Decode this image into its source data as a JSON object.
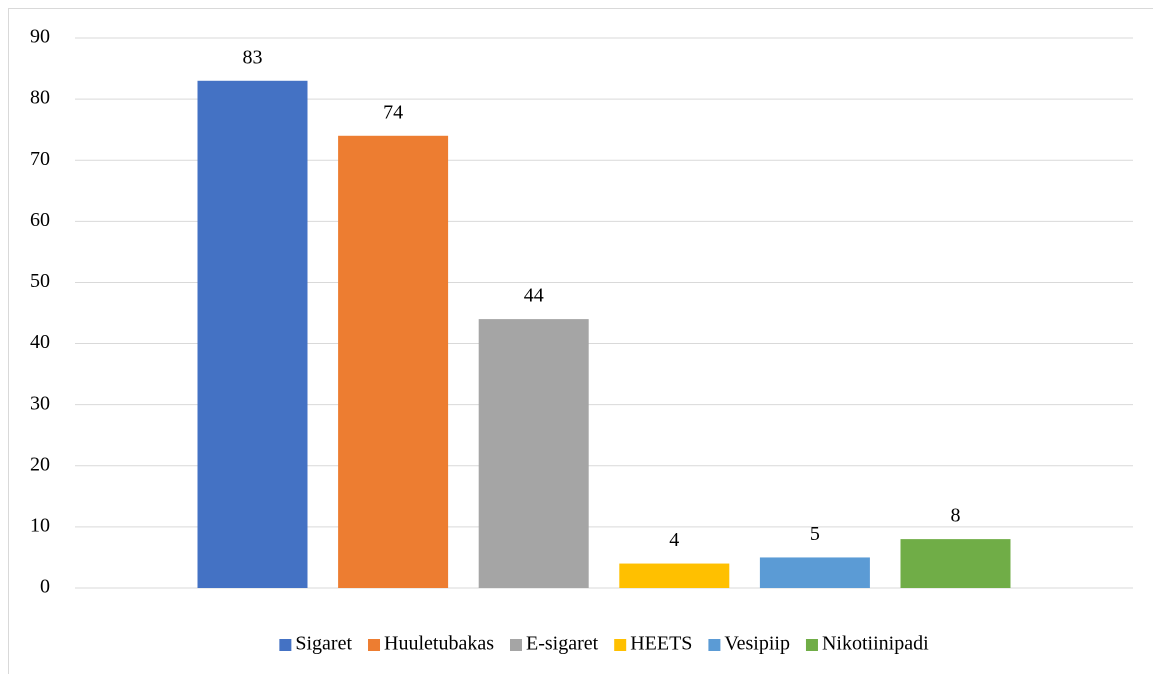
{
  "chart_data": {
    "type": "bar",
    "categories": [
      null
    ],
    "series": [
      {
        "name": "Sigaret",
        "color": "#4472c4",
        "values": [
          83
        ]
      },
      {
        "name": "Huuletubakas",
        "color": "#ed7d31",
        "values": [
          74
        ]
      },
      {
        "name": "E-sigaret",
        "color": "#a5a5a5",
        "values": [
          44
        ]
      },
      {
        "name": "HEETS",
        "color": "#ffc000",
        "values": [
          4
        ]
      },
      {
        "name": "Vesipiip",
        "color": "#5b9bd5",
        "values": [
          5
        ]
      },
      {
        "name": "Nikotiinipadi",
        "color": "#70ad47",
        "values": [
          8
        ]
      }
    ],
    "ylim": [
      0,
      90
    ],
    "yticks": [
      0,
      10,
      20,
      30,
      40,
      50,
      60,
      70,
      80,
      90
    ],
    "grid": true,
    "legend": "bottom",
    "data_labels": true
  }
}
